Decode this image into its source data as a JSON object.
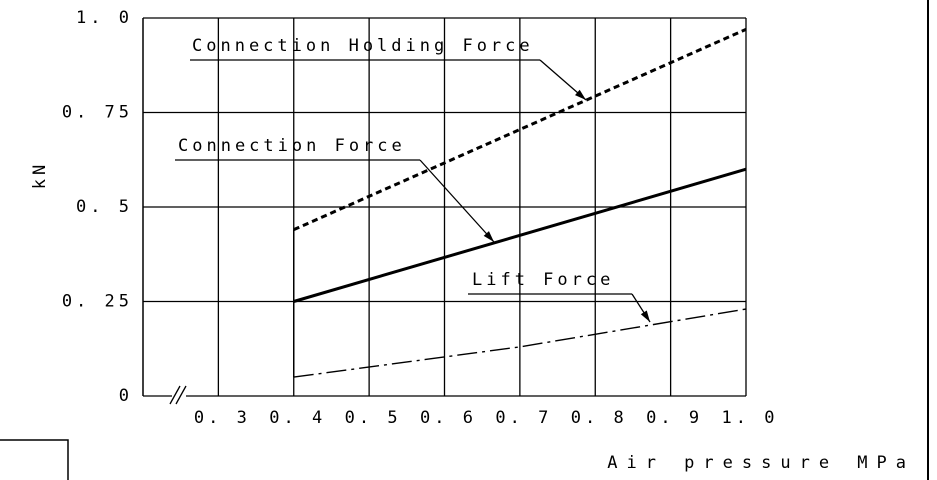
{
  "chart_data": {
    "type": "line",
    "xlabel": "Air pressure MPa",
    "ylabel": "kN",
    "xlim": [
      0.2,
      1.0
    ],
    "xticks": [
      {
        "value": 0.3,
        "label": "0. 3"
      },
      {
        "value": 0.4,
        "label": "0. 4"
      },
      {
        "value": 0.5,
        "label": "0. 5"
      },
      {
        "value": 0.6,
        "label": "0. 6"
      },
      {
        "value": 0.7,
        "label": "0. 7"
      },
      {
        "value": 0.8,
        "label": "0. 8"
      },
      {
        "value": 0.9,
        "label": "0. 9"
      },
      {
        "value": 1.0,
        "label": "1. 0"
      }
    ],
    "ylim": [
      0,
      1.0
    ],
    "yticks": [
      0,
      {
        "value": 0.25,
        "label": "0. 25"
      },
      {
        "value": 0.5,
        "label": "0. 5"
      },
      {
        "value": 0.75,
        "label": "0. 75"
      },
      {
        "value": 1.0,
        "label": "1. 0"
      }
    ],
    "grid": true,
    "series": [
      {
        "name": "Connection Holding Force",
        "color": "#000000",
        "dash": "dashed",
        "x": [
          0.4,
          1.0
        ],
        "values": [
          0.44,
          0.97
        ]
      },
      {
        "name": "Connection Force",
        "color": "#000000",
        "dash": "solid",
        "x": [
          0.4,
          1.0
        ],
        "values": [
          0.25,
          0.6
        ]
      },
      {
        "name": "Lift Force",
        "color": "#000000",
        "dash": "dashdot",
        "x": [
          0.4,
          0.7,
          1.0
        ],
        "values": [
          0.05,
          0.13,
          0.23
        ]
      }
    ]
  }
}
